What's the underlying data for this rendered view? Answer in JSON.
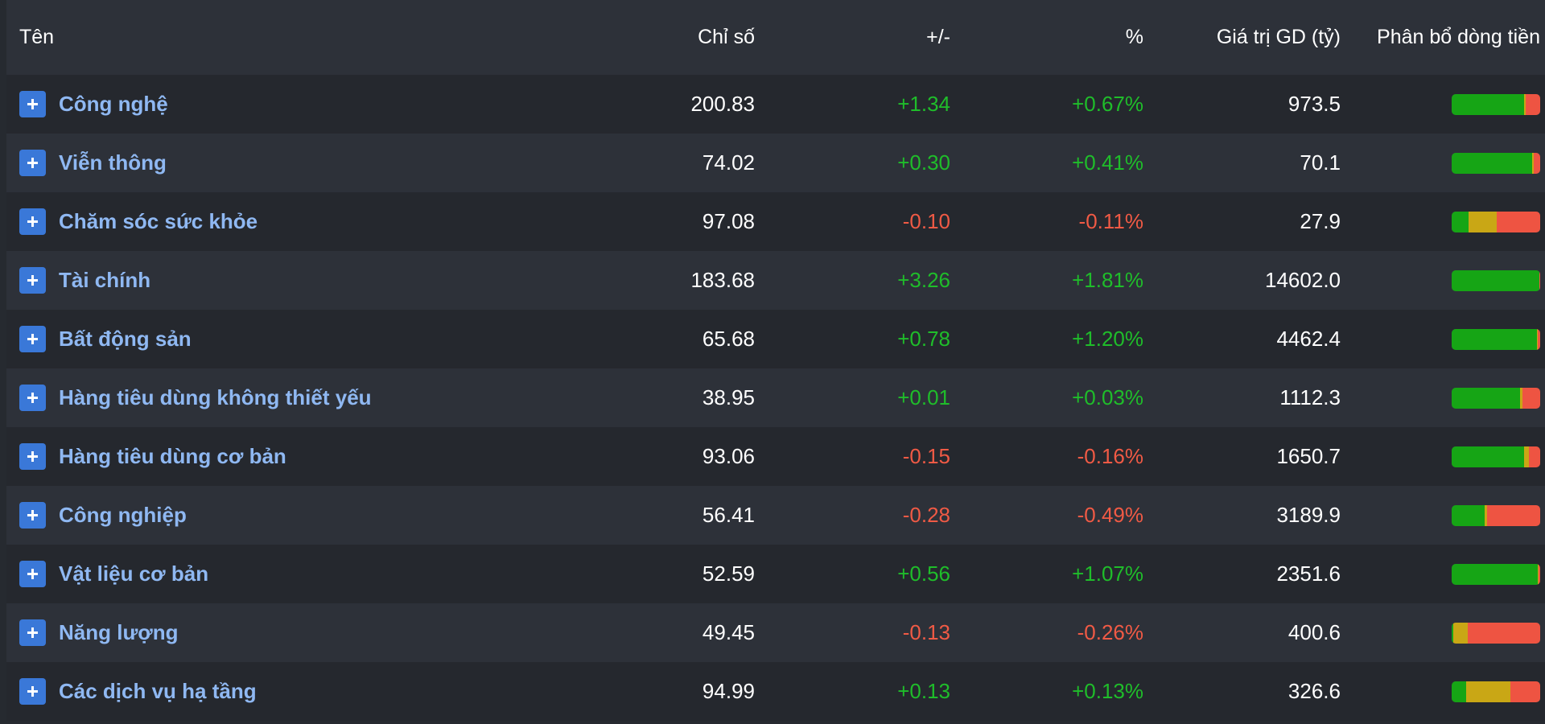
{
  "headers": {
    "name": "Tên",
    "index": "Chỉ số",
    "change": "+/-",
    "percent": "%",
    "value": "Giá trị GD (tỷ)",
    "flow": "Phân bổ dòng tiền"
  },
  "colors": {
    "up": "#16a515",
    "flat": "#c9a715",
    "down": "#ee5442",
    "name": "#8fb8f2",
    "expand": "#3a78d8"
  },
  "rows": [
    {
      "name": "Công nghệ",
      "index": "200.83",
      "change": "+1.34",
      "percent": "+0.67%",
      "value": "973.5",
      "direction": "pos",
      "flow": {
        "up": 82,
        "flat": 2,
        "down": 16
      }
    },
    {
      "name": "Viễn thông",
      "index": "74.02",
      "change": "+0.30",
      "percent": "+0.41%",
      "value": "70.1",
      "direction": "pos",
      "flow": {
        "up": 91,
        "flat": 2,
        "down": 7
      }
    },
    {
      "name": "Chăm sóc sức khỏe",
      "index": "97.08",
      "change": "-0.10",
      "percent": "-0.11%",
      "value": "27.9",
      "direction": "neg",
      "flow": {
        "up": 19,
        "flat": 32,
        "down": 49
      }
    },
    {
      "name": "Tài chính",
      "index": "183.68",
      "change": "+3.26",
      "percent": "+1.81%",
      "value": "14602.0",
      "direction": "pos",
      "flow": {
        "up": 99,
        "flat": 0,
        "down": 1
      }
    },
    {
      "name": "Bất động sản",
      "index": "65.68",
      "change": "+0.78",
      "percent": "+1.20%",
      "value": "4462.4",
      "direction": "pos",
      "flow": {
        "up": 96,
        "flat": 1,
        "down": 3
      }
    },
    {
      "name": "Hàng tiêu dùng không thiết yếu",
      "index": "38.95",
      "change": "+0.01",
      "percent": "+0.03%",
      "value": "1112.3",
      "direction": "pos",
      "flow": {
        "up": 77,
        "flat": 3,
        "down": 20
      }
    },
    {
      "name": "Hàng tiêu dùng cơ bản",
      "index": "93.06",
      "change": "-0.15",
      "percent": "-0.16%",
      "value": "1650.7",
      "direction": "neg",
      "flow": {
        "up": 82,
        "flat": 5,
        "down": 13
      }
    },
    {
      "name": "Công nghiệp",
      "index": "56.41",
      "change": "-0.28",
      "percent": "-0.49%",
      "value": "3189.9",
      "direction": "neg",
      "flow": {
        "up": 37,
        "flat": 3,
        "down": 60
      }
    },
    {
      "name": "Vật liệu cơ bản",
      "index": "52.59",
      "change": "+0.56",
      "percent": "+1.07%",
      "value": "2351.6",
      "direction": "pos",
      "flow": {
        "up": 97,
        "flat": 1,
        "down": 2
      }
    },
    {
      "name": "Năng lượng",
      "index": "49.45",
      "change": "-0.13",
      "percent": "-0.26%",
      "value": "400.6",
      "direction": "neg",
      "flow": {
        "up": 2,
        "flat": 16,
        "down": 82
      }
    },
    {
      "name": "Các dịch vụ hạ tầng",
      "index": "94.99",
      "change": "+0.13",
      "percent": "+0.13%",
      "value": "326.6",
      "direction": "pos",
      "flow": {
        "up": 16,
        "flat": 50,
        "down": 34
      }
    }
  ]
}
